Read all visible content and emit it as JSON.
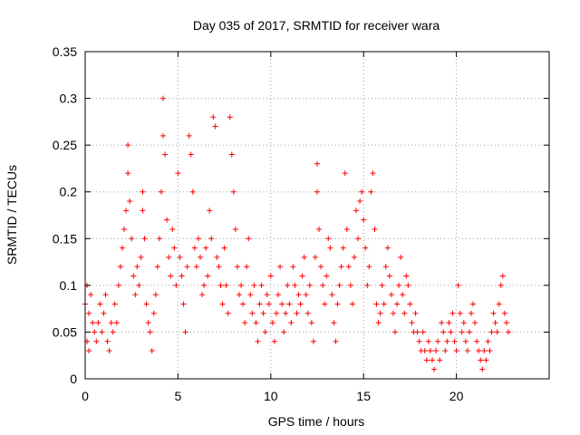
{
  "chart_data": {
    "type": "scatter",
    "title": "Day 035 of 2017, SRMTID for receiver wara",
    "xlabel": "GPS time / hours",
    "ylabel": "SRMTID / TECUs",
    "xlim": [
      0,
      25
    ],
    "ylim": [
      0,
      0.35
    ],
    "x_ticks": [
      0,
      5,
      10,
      15,
      20
    ],
    "x_tick_labels": [
      "0",
      "5",
      "10",
      "15",
      "20"
    ],
    "y_ticks": [
      0,
      0.05,
      0.1,
      0.15,
      0.2,
      0.25,
      0.3,
      0.35
    ],
    "y_tick_labels": [
      "0",
      "0.05",
      "0.1",
      "0.15",
      "0.2",
      "0.25",
      "0.3",
      "0.35"
    ],
    "grid": true,
    "marker": "+",
    "series_color": "#ff0000",
    "series": [
      {
        "name": "SRMTID",
        "points": [
          [
            0.0,
            0.08
          ],
          [
            0.1,
            0.1
          ],
          [
            0.1,
            0.04
          ],
          [
            0.2,
            0.03
          ],
          [
            0.2,
            0.07
          ],
          [
            0.3,
            0.09
          ],
          [
            0.4,
            0.06
          ],
          [
            0.5,
            0.05
          ],
          [
            0.6,
            0.04
          ],
          [
            0.7,
            0.06
          ],
          [
            0.8,
            0.08
          ],
          [
            0.9,
            0.05
          ],
          [
            1.0,
            0.07
          ],
          [
            1.1,
            0.09
          ],
          [
            1.2,
            0.04
          ],
          [
            1.3,
            0.03
          ],
          [
            1.4,
            0.06
          ],
          [
            1.5,
            0.05
          ],
          [
            1.6,
            0.08
          ],
          [
            1.7,
            0.06
          ],
          [
            1.8,
            0.1
          ],
          [
            1.9,
            0.12
          ],
          [
            2.0,
            0.14
          ],
          [
            2.1,
            0.16
          ],
          [
            2.2,
            0.18
          ],
          [
            2.3,
            0.25
          ],
          [
            2.3,
            0.22
          ],
          [
            2.4,
            0.19
          ],
          [
            2.5,
            0.15
          ],
          [
            2.6,
            0.11
          ],
          [
            2.7,
            0.09
          ],
          [
            2.8,
            0.12
          ],
          [
            2.9,
            0.1
          ],
          [
            3.0,
            0.13
          ],
          [
            3.1,
            0.18
          ],
          [
            3.1,
            0.2
          ],
          [
            3.2,
            0.15
          ],
          [
            3.3,
            0.08
          ],
          [
            3.4,
            0.06
          ],
          [
            3.5,
            0.05
          ],
          [
            3.6,
            0.03
          ],
          [
            3.7,
            0.07
          ],
          [
            3.8,
            0.09
          ],
          [
            3.9,
            0.12
          ],
          [
            4.0,
            0.15
          ],
          [
            4.1,
            0.2
          ],
          [
            4.2,
            0.26
          ],
          [
            4.2,
            0.3
          ],
          [
            4.3,
            0.24
          ],
          [
            4.4,
            0.17
          ],
          [
            4.5,
            0.13
          ],
          [
            4.6,
            0.11
          ],
          [
            4.7,
            0.16
          ],
          [
            4.8,
            0.14
          ],
          [
            4.9,
            0.1
          ],
          [
            5.0,
            0.22
          ],
          [
            5.1,
            0.13
          ],
          [
            5.2,
            0.11
          ],
          [
            5.3,
            0.08
          ],
          [
            5.4,
            0.05
          ],
          [
            5.5,
            0.12
          ],
          [
            5.6,
            0.26
          ],
          [
            5.7,
            0.24
          ],
          [
            5.8,
            0.2
          ],
          [
            5.9,
            0.14
          ],
          [
            6.0,
            0.12
          ],
          [
            6.1,
            0.15
          ],
          [
            6.2,
            0.13
          ],
          [
            6.3,
            0.09
          ],
          [
            6.4,
            0.1
          ],
          [
            6.5,
            0.14
          ],
          [
            6.6,
            0.11
          ],
          [
            6.7,
            0.18
          ],
          [
            6.8,
            0.15
          ],
          [
            6.9,
            0.28
          ],
          [
            7.0,
            0.27
          ],
          [
            7.1,
            0.13
          ],
          [
            7.2,
            0.12
          ],
          [
            7.3,
            0.1
          ],
          [
            7.4,
            0.08
          ],
          [
            7.5,
            0.14
          ],
          [
            7.6,
            0.1
          ],
          [
            7.7,
            0.07
          ],
          [
            7.8,
            0.28
          ],
          [
            7.9,
            0.24
          ],
          [
            8.0,
            0.2
          ],
          [
            8.1,
            0.16
          ],
          [
            8.2,
            0.12
          ],
          [
            8.3,
            0.09
          ],
          [
            8.4,
            0.1
          ],
          [
            8.5,
            0.08
          ],
          [
            8.6,
            0.06
          ],
          [
            8.7,
            0.12
          ],
          [
            8.8,
            0.15
          ],
          [
            8.9,
            0.09
          ],
          [
            9.0,
            0.07
          ],
          [
            9.1,
            0.1
          ],
          [
            9.2,
            0.06
          ],
          [
            9.3,
            0.04
          ],
          [
            9.4,
            0.08
          ],
          [
            9.5,
            0.1
          ],
          [
            9.6,
            0.07
          ],
          [
            9.7,
            0.05
          ],
          [
            9.8,
            0.09
          ],
          [
            9.9,
            0.08
          ],
          [
            10.0,
            0.11
          ],
          [
            10.1,
            0.06
          ],
          [
            10.2,
            0.04
          ],
          [
            10.3,
            0.07
          ],
          [
            10.4,
            0.09
          ],
          [
            10.5,
            0.12
          ],
          [
            10.6,
            0.08
          ],
          [
            10.7,
            0.05
          ],
          [
            10.8,
            0.07
          ],
          [
            10.9,
            0.1
          ],
          [
            11.0,
            0.08
          ],
          [
            11.1,
            0.06
          ],
          [
            11.2,
            0.12
          ],
          [
            11.3,
            0.1
          ],
          [
            11.4,
            0.07
          ],
          [
            11.5,
            0.09
          ],
          [
            11.6,
            0.08
          ],
          [
            11.7,
            0.11
          ],
          [
            11.8,
            0.13
          ],
          [
            11.9,
            0.09
          ],
          [
            12.0,
            0.07
          ],
          [
            12.1,
            0.1
          ],
          [
            12.2,
            0.06
          ],
          [
            12.3,
            0.04
          ],
          [
            12.4,
            0.13
          ],
          [
            12.5,
            0.23
          ],
          [
            12.5,
            0.2
          ],
          [
            12.6,
            0.16
          ],
          [
            12.7,
            0.12
          ],
          [
            12.8,
            0.1
          ],
          [
            12.9,
            0.08
          ],
          [
            13.0,
            0.11
          ],
          [
            13.1,
            0.15
          ],
          [
            13.2,
            0.14
          ],
          [
            13.3,
            0.09
          ],
          [
            13.4,
            0.06
          ],
          [
            13.5,
            0.04
          ],
          [
            13.6,
            0.08
          ],
          [
            13.7,
            0.1
          ],
          [
            13.8,
            0.12
          ],
          [
            13.9,
            0.14
          ],
          [
            14.0,
            0.22
          ],
          [
            14.1,
            0.16
          ],
          [
            14.2,
            0.12
          ],
          [
            14.3,
            0.1
          ],
          [
            14.4,
            0.08
          ],
          [
            14.5,
            0.13
          ],
          [
            14.6,
            0.18
          ],
          [
            14.7,
            0.15
          ],
          [
            14.8,
            0.19
          ],
          [
            14.9,
            0.2
          ],
          [
            15.0,
            0.17
          ],
          [
            15.1,
            0.14
          ],
          [
            15.2,
            0.1
          ],
          [
            15.3,
            0.12
          ],
          [
            15.4,
            0.2
          ],
          [
            15.5,
            0.22
          ],
          [
            15.6,
            0.16
          ],
          [
            15.7,
            0.08
          ],
          [
            15.8,
            0.06
          ],
          [
            15.9,
            0.07
          ],
          [
            16.0,
            0.1
          ],
          [
            16.1,
            0.08
          ],
          [
            16.2,
            0.12
          ],
          [
            16.3,
            0.14
          ],
          [
            16.4,
            0.11
          ],
          [
            16.5,
            0.09
          ],
          [
            16.6,
            0.07
          ],
          [
            16.7,
            0.05
          ],
          [
            16.8,
            0.08
          ],
          [
            16.9,
            0.1
          ],
          [
            17.0,
            0.13
          ],
          [
            17.1,
            0.09
          ],
          [
            17.2,
            0.07
          ],
          [
            17.3,
            0.11
          ],
          [
            17.4,
            0.1
          ],
          [
            17.5,
            0.08
          ],
          [
            17.6,
            0.06
          ],
          [
            17.7,
            0.05
          ],
          [
            17.8,
            0.07
          ],
          [
            17.9,
            0.05
          ],
          [
            18.0,
            0.04
          ],
          [
            18.1,
            0.03
          ],
          [
            18.2,
            0.05
          ],
          [
            18.3,
            0.03
          ],
          [
            18.4,
            0.02
          ],
          [
            18.5,
            0.04
          ],
          [
            18.6,
            0.03
          ],
          [
            18.7,
            0.02
          ],
          [
            18.8,
            0.01
          ],
          [
            18.9,
            0.03
          ],
          [
            19.0,
            0.04
          ],
          [
            19.1,
            0.02
          ],
          [
            19.2,
            0.06
          ],
          [
            19.3,
            0.05
          ],
          [
            19.4,
            0.03
          ],
          [
            19.5,
            0.04
          ],
          [
            19.6,
            0.06
          ],
          [
            19.7,
            0.05
          ],
          [
            19.8,
            0.07
          ],
          [
            19.9,
            0.04
          ],
          [
            20.0,
            0.03
          ],
          [
            20.1,
            0.1
          ],
          [
            20.2,
            0.07
          ],
          [
            20.3,
            0.05
          ],
          [
            20.4,
            0.06
          ],
          [
            20.5,
            0.04
          ],
          [
            20.6,
            0.03
          ],
          [
            20.7,
            0.05
          ],
          [
            20.8,
            0.07
          ],
          [
            20.9,
            0.08
          ],
          [
            21.0,
            0.06
          ],
          [
            21.1,
            0.04
          ],
          [
            21.2,
            0.03
          ],
          [
            21.3,
            0.02
          ],
          [
            21.4,
            0.01
          ],
          [
            21.5,
            0.03
          ],
          [
            21.6,
            0.02
          ],
          [
            21.7,
            0.04
          ],
          [
            21.8,
            0.03
          ],
          [
            21.9,
            0.05
          ],
          [
            22.0,
            0.07
          ],
          [
            22.1,
            0.06
          ],
          [
            22.2,
            0.05
          ],
          [
            22.3,
            0.08
          ],
          [
            22.4,
            0.1
          ],
          [
            22.5,
            0.11
          ],
          [
            22.6,
            0.07
          ],
          [
            22.7,
            0.06
          ],
          [
            22.8,
            0.05
          ]
        ]
      }
    ]
  }
}
